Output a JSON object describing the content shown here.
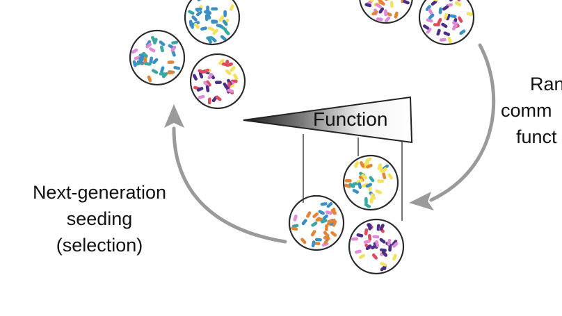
{
  "labels": {
    "function": "Function",
    "seeding": [
      "Next-generation",
      "seeding",
      "(selection)"
    ],
    "right_partial": [
      "Ran",
      "comm",
      "funct"
    ]
  },
  "colors": {
    "arrow": "#9a9a9a",
    "circle_edge": "#2a2a2a",
    "blue": "#3a8fc7",
    "yellow": "#f3e25a",
    "pink": "#e08ad8",
    "orange": "#e48436",
    "purple": "#4a2f8a",
    "red": "#e04a5a",
    "teal": "#3aa8a2"
  },
  "communities": [
    {
      "name": "top-left-community-1",
      "palette": [
        "blue",
        "blue",
        "blue",
        "yellow",
        "teal"
      ]
    },
    {
      "name": "top-left-community-2",
      "palette": [
        "blue",
        "teal",
        "orange",
        "pink",
        "blue"
      ]
    },
    {
      "name": "top-left-community-3",
      "palette": [
        "purple",
        "yellow",
        "red",
        "pink",
        "purple"
      ]
    },
    {
      "name": "top-right-community-1",
      "palette": [
        "pink",
        "yellow",
        "orange",
        "purple"
      ]
    },
    {
      "name": "top-right-community-2",
      "palette": [
        "purple",
        "yellow",
        "red",
        "pink",
        "blue"
      ]
    },
    {
      "name": "bottom-community-1",
      "palette": [
        "yellow",
        "blue",
        "teal",
        "yellow",
        "orange"
      ]
    },
    {
      "name": "bottom-community-2",
      "palette": [
        "orange",
        "pink",
        "teal",
        "orange",
        "blue"
      ]
    },
    {
      "name": "bottom-community-3",
      "palette": [
        "purple",
        "yellow",
        "purple",
        "pink",
        "red"
      ]
    }
  ]
}
